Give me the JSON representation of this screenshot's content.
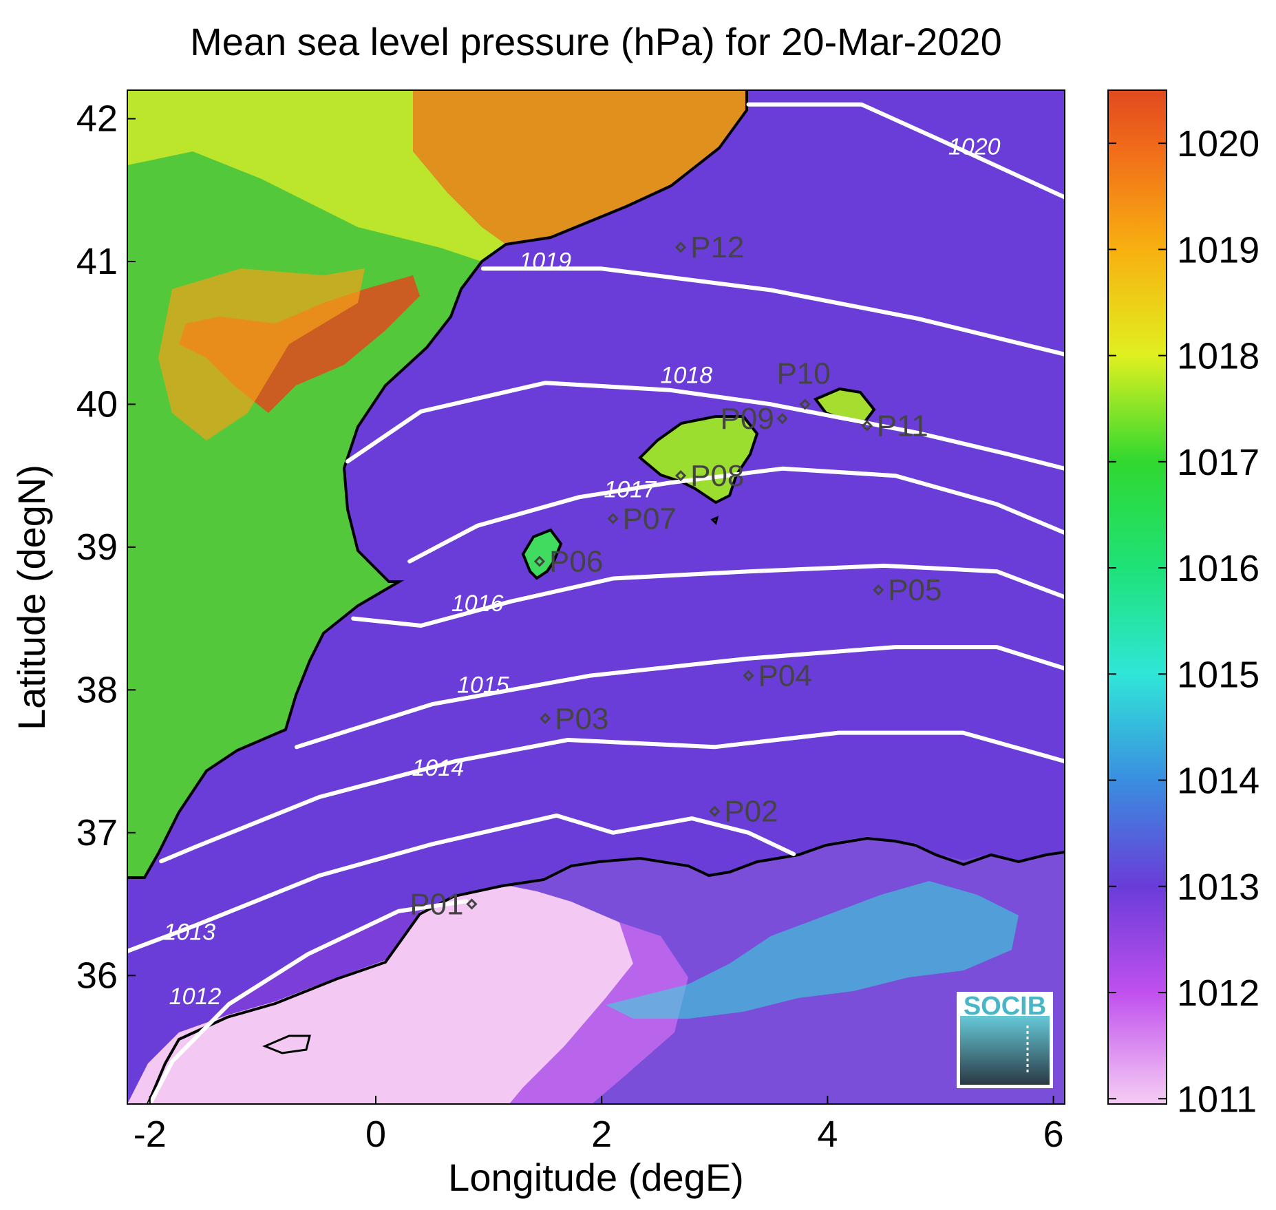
{
  "title": "Mean sea level pressure (hPa) for 20-Mar-2020",
  "colors": {
    "isobar": "#ffffff",
    "coastline": "#000000",
    "station_marker": "#444444",
    "station_label": "#444444",
    "logo": "#49b6c8",
    "colormap_low": "#f3c8f3",
    "colormap_high": "#e04a1f"
  },
  "chart_data": {
    "type": "heatmap",
    "title": "Mean sea level pressure (hPa) for 20-Mar-2020",
    "xlabel": "Longitude (degE)",
    "ylabel": "Latitude (degN)",
    "xlim": [
      -2.2,
      6.1
    ],
    "ylim": [
      35.1,
      42.2
    ],
    "xticks": [
      -2,
      0,
      2,
      4,
      6
    ],
    "yticks": [
      36,
      37,
      38,
      39,
      40,
      41,
      42
    ],
    "colorbar": {
      "min": 1010.95,
      "max": 1020.5,
      "ticks": [
        1011,
        1012,
        1013,
        1014,
        1015,
        1016,
        1017,
        1018,
        1019,
        1020
      ],
      "stops": [
        {
          "value": 1011,
          "color": "#f3c8f3"
        },
        {
          "value": 1012,
          "color": "#c050ee"
        },
        {
          "value": 1013,
          "color": "#6a3cd8"
        },
        {
          "value": 1014,
          "color": "#3a8ee0"
        },
        {
          "value": 1015,
          "color": "#30e6d8"
        },
        {
          "value": 1016,
          "color": "#1ee278"
        },
        {
          "value": 1017,
          "color": "#30d830"
        },
        {
          "value": 1018,
          "color": "#e0f020"
        },
        {
          "value": 1019,
          "color": "#f8b010"
        },
        {
          "value": 1020,
          "color": "#f0681a"
        },
        {
          "value": 1020.5,
          "color": "#e04a1f"
        }
      ]
    },
    "isobars": [
      {
        "value": 1012,
        "label": "1012",
        "label_at": [
          -1.6,
          35.8
        ],
        "points": [
          [
            -2.0,
            35.1
          ],
          [
            -1.8,
            35.4
          ],
          [
            -1.3,
            35.8
          ],
          [
            -0.6,
            36.15
          ],
          [
            0.2,
            36.45
          ],
          [
            0.8,
            36.52
          ]
        ]
      },
      {
        "value": 1013,
        "label": "1013",
        "label_at": [
          -1.65,
          36.25
        ],
        "points": [
          [
            -2.2,
            36.17
          ],
          [
            -1.6,
            36.35
          ],
          [
            -0.5,
            36.7
          ],
          [
            0.5,
            36.92
          ],
          [
            1.6,
            37.12
          ],
          [
            2.1,
            37.0
          ],
          [
            2.8,
            37.1
          ],
          [
            3.3,
            37.0
          ],
          [
            3.7,
            36.85
          ]
        ]
      },
      {
        "value": 1014,
        "label": "1014",
        "label_at": [
          0.55,
          37.4
        ],
        "points": [
          [
            -1.9,
            36.8
          ],
          [
            -1.6,
            36.9
          ],
          [
            -0.5,
            37.25
          ],
          [
            0.7,
            37.5
          ],
          [
            1.7,
            37.65
          ],
          [
            3.0,
            37.6
          ],
          [
            4.1,
            37.7
          ],
          [
            5.2,
            37.7
          ],
          [
            6.1,
            37.5
          ]
        ]
      },
      {
        "value": 1015,
        "label": "1015",
        "label_at": [
          0.95,
          37.98
        ],
        "points": [
          [
            -0.7,
            37.6
          ],
          [
            0.5,
            37.9
          ],
          [
            1.9,
            38.1
          ],
          [
            3.3,
            38.22
          ],
          [
            4.6,
            38.3
          ],
          [
            5.5,
            38.3
          ],
          [
            6.1,
            38.15
          ]
        ]
      },
      {
        "value": 1016,
        "label": "1016",
        "label_at": [
          0.9,
          38.55
        ],
        "points": [
          [
            -0.2,
            38.5
          ],
          [
            0.4,
            38.45
          ],
          [
            1.2,
            38.62
          ],
          [
            2.1,
            38.78
          ],
          [
            3.3,
            38.83
          ],
          [
            4.5,
            38.87
          ],
          [
            5.5,
            38.83
          ],
          [
            6.1,
            38.65
          ]
        ]
      },
      {
        "value": 1017,
        "label": "1017",
        "label_at": [
          2.25,
          39.35
        ],
        "points": [
          [
            0.3,
            38.9
          ],
          [
            0.9,
            39.15
          ],
          [
            1.8,
            39.35
          ],
          [
            2.6,
            39.45
          ],
          [
            3.6,
            39.55
          ],
          [
            4.6,
            39.5
          ],
          [
            5.5,
            39.3
          ],
          [
            6.1,
            39.1
          ]
        ]
      },
      {
        "value": 1018,
        "label": "1018",
        "label_at": [
          2.75,
          40.15
        ],
        "points": [
          [
            -0.25,
            39.6
          ],
          [
            0.4,
            39.95
          ],
          [
            1.5,
            40.15
          ],
          [
            2.6,
            40.1
          ],
          [
            3.5,
            40.0
          ],
          [
            4.8,
            39.8
          ],
          [
            5.6,
            39.65
          ],
          [
            6.1,
            39.55
          ]
        ]
      },
      {
        "value": 1019,
        "label": "1019",
        "label_at": [
          1.5,
          40.95
        ],
        "points": [
          [
            0.95,
            40.95
          ],
          [
            2.0,
            40.95
          ],
          [
            3.5,
            40.8
          ],
          [
            4.8,
            40.6
          ],
          [
            6.1,
            40.35
          ]
        ]
      },
      {
        "value": 1020,
        "label": "1020",
        "label_at": [
          5.3,
          41.75
        ],
        "points": [
          [
            3.3,
            42.1
          ],
          [
            4.3,
            42.1
          ],
          [
            5.0,
            41.85
          ],
          [
            6.1,
            41.45
          ]
        ]
      }
    ],
    "stations": [
      {
        "name": "P01",
        "lon": 0.85,
        "lat": 36.5
      },
      {
        "name": "P02",
        "lon": 3.0,
        "lat": 37.15
      },
      {
        "name": "P03",
        "lon": 1.5,
        "lat": 37.8
      },
      {
        "name": "P04",
        "lon": 3.3,
        "lat": 38.1
      },
      {
        "name": "P05",
        "lon": 4.45,
        "lat": 38.7
      },
      {
        "name": "P06",
        "lon": 1.45,
        "lat": 38.9
      },
      {
        "name": "P07",
        "lon": 2.1,
        "lat": 39.2
      },
      {
        "name": "P08",
        "lon": 2.7,
        "lat": 39.5
      },
      {
        "name": "P09",
        "lon": 3.6,
        "lat": 39.9
      },
      {
        "name": "P10",
        "lon": 3.8,
        "lat": 40.0
      },
      {
        "name": "P11",
        "lon": 4.35,
        "lat": 39.85
      },
      {
        "name": "P12",
        "lon": 2.7,
        "lat": 41.1
      }
    ]
  },
  "logo": {
    "text": "SOCIB"
  }
}
